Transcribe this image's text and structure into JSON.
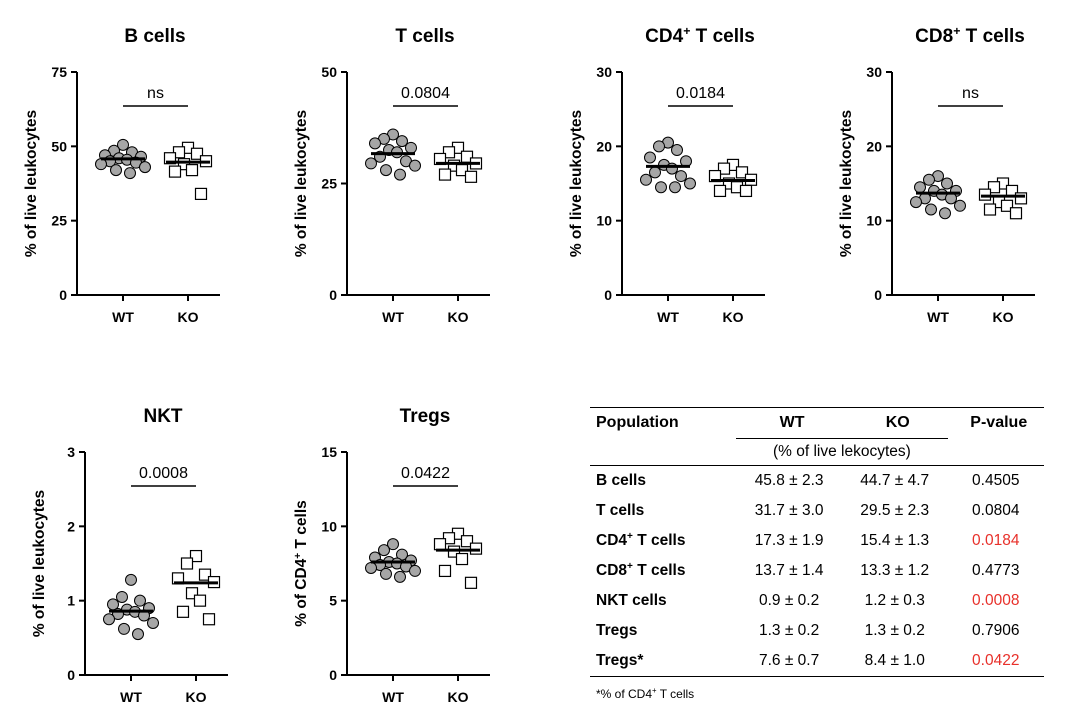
{
  "chart_data": [
    {
      "type": "scatter",
      "title": "B cells",
      "ylabel": "% of live leukocytes",
      "ylim": [
        0,
        75
      ],
      "yticks": [
        "0",
        "25",
        "50",
        "75"
      ],
      "categories": [
        "WT",
        "KO"
      ],
      "series": [
        {
          "name": "WT",
          "values": [
            50.5,
            48.5,
            48,
            47,
            46.5,
            46,
            45.5,
            45,
            44.5,
            44,
            43,
            42,
            41
          ],
          "median": 45.8
        },
        {
          "name": "KO",
          "values": [
            49.5,
            48,
            47.5,
            46,
            45,
            44,
            42,
            41.5,
            34
          ],
          "median": 44.7
        }
      ],
      "annotation": "ns"
    },
    {
      "type": "scatter",
      "title": "T cells",
      "ylabel": "% of live leukocytes",
      "ylim": [
        0,
        50
      ],
      "yticks": [
        "0",
        "25",
        "50"
      ],
      "categories": [
        "WT",
        "KO"
      ],
      "series": [
        {
          "name": "WT",
          "values": [
            36,
            35,
            34.5,
            34,
            33,
            32.5,
            32,
            31,
            30,
            29.5,
            29,
            28,
            27
          ],
          "median": 31.7
        },
        {
          "name": "KO",
          "values": [
            33,
            32,
            31,
            30.5,
            29.5,
            29,
            28,
            27,
            26.5
          ],
          "median": 29.5
        }
      ],
      "annotation": "0.0804"
    },
    {
      "type": "scatter",
      "title": "CD4+ T cells",
      "ylabel": "% of live leukocytes",
      "ylim": [
        0,
        30
      ],
      "yticks": [
        "0",
        "10",
        "20",
        "30"
      ],
      "categories": [
        "WT",
        "KO"
      ],
      "series": [
        {
          "name": "WT",
          "values": [
            20.5,
            20,
            19.5,
            18.5,
            18,
            17.5,
            17,
            16.5,
            16,
            15.5,
            15,
            14.5,
            14.5
          ],
          "median": 17.3
        },
        {
          "name": "KO",
          "values": [
            17.5,
            17,
            16.5,
            16,
            15.5,
            15,
            14.5,
            14,
            14
          ],
          "median": 15.4
        }
      ],
      "annotation": "0.0184"
    },
    {
      "type": "scatter",
      "title": "CD8+ T cells",
      "ylabel": "% of live leukocytes",
      "ylim": [
        0,
        30
      ],
      "yticks": [
        "0",
        "10",
        "20",
        "30"
      ],
      "categories": [
        "WT",
        "KO"
      ],
      "series": [
        {
          "name": "WT",
          "values": [
            16,
            15.5,
            15,
            14.5,
            14,
            14,
            13.5,
            13,
            13,
            12.5,
            12,
            11.5,
            11
          ],
          "median": 13.7
        },
        {
          "name": "KO",
          "values": [
            15,
            14.5,
            14,
            13.5,
            13,
            12.5,
            12,
            11.5,
            11
          ],
          "median": 13.3
        }
      ],
      "annotation": "ns"
    },
    {
      "type": "scatter",
      "title": "NKT",
      "ylabel": "% of live leukocytes",
      "ylim": [
        0,
        3
      ],
      "yticks": [
        "0",
        "1",
        "2",
        "3"
      ],
      "categories": [
        "WT",
        "KO"
      ],
      "series": [
        {
          "name": "WT",
          "values": [
            1.28,
            1.05,
            1.0,
            0.95,
            0.9,
            0.88,
            0.85,
            0.82,
            0.8,
            0.75,
            0.7,
            0.62,
            0.55
          ],
          "median": 0.86
        },
        {
          "name": "KO",
          "values": [
            1.6,
            1.5,
            1.35,
            1.3,
            1.25,
            1.1,
            1.0,
            0.85,
            0.75
          ],
          "median": 1.24
        }
      ],
      "annotation": "0.0008"
    },
    {
      "type": "scatter",
      "title": "Tregs",
      "ylabel": "% of CD4+ T cells",
      "ylim": [
        0,
        15
      ],
      "yticks": [
        "0",
        "5",
        "10",
        "15"
      ],
      "categories": [
        "WT",
        "KO"
      ],
      "series": [
        {
          "name": "WT",
          "values": [
            8.8,
            8.4,
            8.1,
            7.9,
            7.7,
            7.6,
            7.5,
            7.4,
            7.3,
            7.2,
            7.0,
            6.8,
            6.6
          ],
          "median": 7.6
        },
        {
          "name": "KO",
          "values": [
            9.5,
            9.2,
            9.0,
            8.8,
            8.5,
            8.3,
            7.8,
            7.0,
            6.2
          ],
          "median": 8.4
        }
      ],
      "annotation": "0.0422"
    }
  ],
  "table": {
    "headers": [
      "Population",
      "WT",
      "KO",
      "P-value"
    ],
    "unit_row": "(% of live lekocytes)",
    "rows": [
      {
        "population": "B cells",
        "wt": "45.8 ± 2.3",
        "ko": "44.7 ± 4.7",
        "p": "0.4505",
        "significant": false
      },
      {
        "population": "T cells",
        "wt": "31.7 ± 3.0",
        "ko": "29.5 ± 2.3",
        "p": "0.0804",
        "significant": false
      },
      {
        "population": "CD4+ T cells",
        "wt": "17.3 ± 1.9",
        "ko": "15.4 ± 1.3",
        "p": "0.0184",
        "significant": true
      },
      {
        "population": "CD8+ T cells",
        "wt": "13.7 ± 1.4",
        "ko": "13.3 ± 1.2",
        "p": "0.4773",
        "significant": false
      },
      {
        "population": "NKT cells",
        "wt": "0.9 ± 0.2",
        "ko": "1.2 ± 0.3",
        "p": "0.0008",
        "significant": true
      },
      {
        "population": "Tregs",
        "wt": "1.3 ± 0.2",
        "ko": "1.3 ± 0.2",
        "p": "0.7906",
        "significant": false
      },
      {
        "population": "Tregs*",
        "wt": "7.6 ± 0.7",
        "ko": "8.4 ± 1.0",
        "p": "0.0422",
        "significant": true
      }
    ],
    "footnote": "*% of CD4+ T cells"
  },
  "colors": {
    "wt_fill": "#a6a6a6",
    "ko_fill": "#ffffff",
    "significant_p": "#e8302a"
  }
}
